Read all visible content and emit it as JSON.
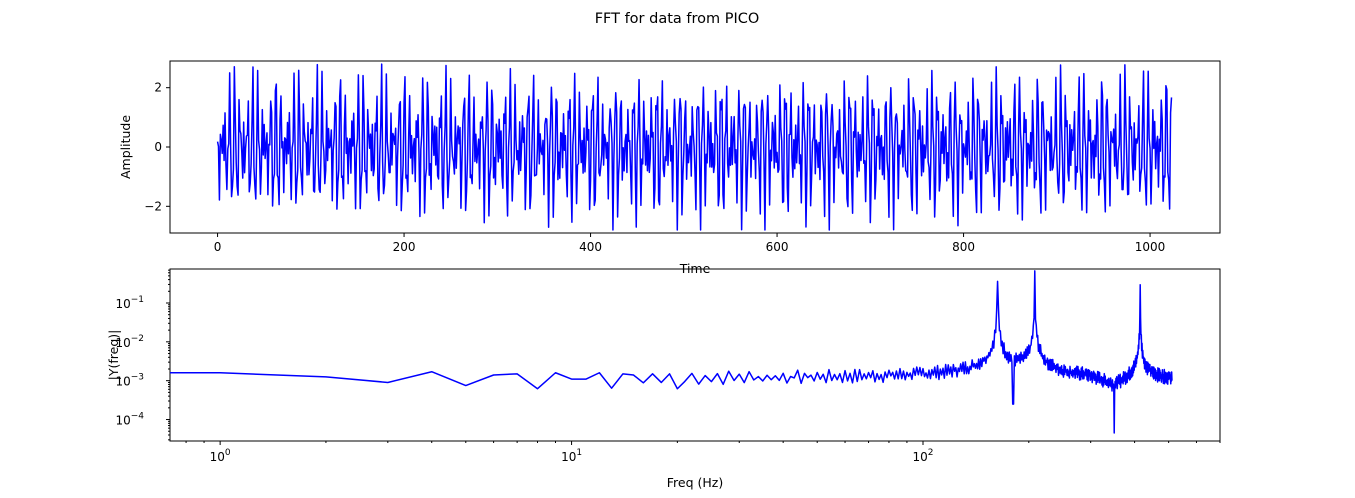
{
  "title": "FFT for data from PICO",
  "colors": {
    "series": "#0000ff",
    "axes": "#000000",
    "background": "#ffffff"
  },
  "chart_data": [
    {
      "type": "line",
      "id": "time-domain",
      "xlabel": "Time",
      "ylabel": "Amplitude",
      "xlim": [
        -51,
        1075
      ],
      "ylim": [
        -2.9,
        2.9
      ],
      "xticks": [
        0,
        200,
        400,
        600,
        800,
        1000
      ],
      "yticks": [
        -2,
        0,
        2
      ],
      "xtick_labels": [
        "0",
        "200",
        "400",
        "600",
        "800",
        "1000"
      ],
      "ytick_labels": [
        "−2",
        "0",
        "2"
      ],
      "grid": false,
      "series": [
        {
          "color": "#0000ff",
          "description": "1024 samples, sum of sinusoids at bins 163, 208 and 415 (1024-point signal)",
          "n_samples": 1024,
          "components": [
            {
              "bin": 163,
              "amplitude": 1.0
            },
            {
              "bin": 208,
              "amplitude": 1.0
            },
            {
              "bin": 415,
              "amplitude": 0.8
            }
          ]
        }
      ]
    },
    {
      "type": "line",
      "id": "frequency-domain",
      "xlabel": "Freq (Hz)",
      "ylabel": "|Y(freq)|",
      "xscale": "log",
      "yscale": "log",
      "xlim": [
        0.72,
        700
      ],
      "ylim": [
        2.8e-05,
        0.75
      ],
      "xticks": [
        1,
        10,
        100
      ],
      "yticks": [
        0.0001,
        0.001,
        0.01,
        0.1
      ],
      "xtick_labels": [
        "10",
        "10",
        "10"
      ],
      "xtick_exponents": [
        "0",
        "1",
        "2"
      ],
      "ytick_labels": [
        "10",
        "10",
        "10",
        "10"
      ],
      "ytick_exponents": [
        "−4",
        "−3",
        "−2",
        "−1"
      ],
      "grid": false,
      "series": [
        {
          "color": "#0000ff",
          "freq_range": [
            0,
            511
          ],
          "peaks": [
            {
              "freq": 163,
              "magnitude": 0.48
            },
            {
              "freq": 208,
              "magnitude": 0.48
            },
            {
              "freq": 415,
              "magnitude": 0.38
            }
          ],
          "low_freq_points": [
            [
              1,
              0.0016
            ],
            [
              2,
              0.00125
            ],
            [
              3,
              0.0009
            ],
            [
              4,
              0.0017
            ],
            [
              5,
              0.00075
            ],
            [
              6,
              0.0014
            ],
            [
              7,
              0.0015
            ],
            [
              8,
              0.00062
            ],
            [
              9,
              0.0016
            ],
            [
              10,
              0.0011
            ],
            [
              11,
              0.0011
            ],
            [
              12,
              0.0016
            ],
            [
              13,
              0.00064
            ],
            [
              14,
              0.0015
            ],
            [
              15,
              0.0014
            ],
            [
              16,
              0.00088
            ],
            [
              17,
              0.0015
            ],
            [
              18,
              0.0009
            ],
            [
              19,
              0.0015
            ],
            [
              20,
              0.00062
            ]
          ],
          "dip": {
            "freq": 350,
            "magnitude": 4.5e-05
          }
        }
      ]
    }
  ]
}
